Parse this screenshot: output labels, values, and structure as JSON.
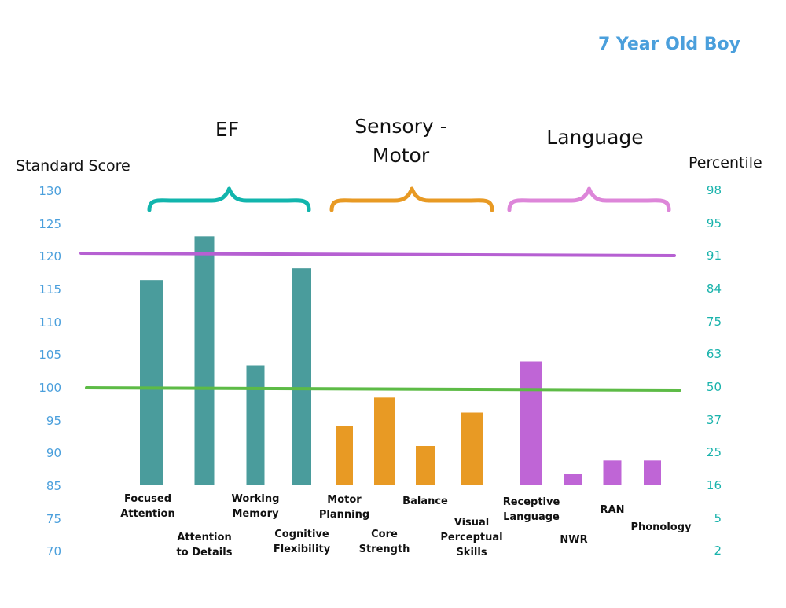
{
  "subtitle": "7 Year Old Boy",
  "chart_data": {
    "type": "bar",
    "left_axis": {
      "title": "Standard Score",
      "ticks": [
        "130",
        "125",
        "120",
        "115",
        "110",
        "105",
        "100",
        "95",
        "90",
        "85",
        "75",
        "70"
      ],
      "tick_color": "#4a9fdc"
    },
    "right_axis": {
      "title": "Percentile",
      "ticks": [
        "98",
        "95",
        "91",
        "84",
        "75",
        "63",
        "50",
        "37",
        "25",
        "16",
        "5",
        "2"
      ],
      "tick_color": "#1ab3ac"
    },
    "groups": [
      {
        "name": "EF",
        "color": "#4a9c9c",
        "bracket_color": "#12b5ad"
      },
      {
        "name": "Sensory -\nMotor",
        "color": "#e89a24",
        "bracket_color": "#e89a24"
      },
      {
        "name": "Language",
        "color": "#bf65d6",
        "bracket_color": "#dd86d9"
      }
    ],
    "categories": [
      "Focused\nAttention",
      "Attention\nto Details",
      "Working\nMemory",
      "Cognitive\nFlexibility",
      "Motor\nPlanning",
      "Core\nStrength",
      "Balance",
      "Visual\nPerceptual\nSkills",
      "Receptive\nLanguage",
      "NWR",
      "RAN",
      "Phonology"
    ],
    "bars": [
      {
        "category": "Focused\nAttention",
        "group": "EF",
        "value": 116.3
      },
      {
        "category": "Attention\nto Details",
        "group": "EF",
        "value": 123
      },
      {
        "category": "Working\nMemory",
        "group": "EF",
        "value": 103.3
      },
      {
        "category": "Cognitive\nFlexibility",
        "group": "EF",
        "value": 118.1
      },
      {
        "category": "Motor\nPlanning",
        "group": "Sensory -\nMotor",
        "value": 94.1
      },
      {
        "category": "Core\nStrength",
        "group": "Sensory -\nMotor",
        "value": 98.4
      },
      {
        "category": "Balance",
        "group": "Sensory -\nMotor",
        "value": 91
      },
      {
        "category": "Visual\nPerceptual\nSkills",
        "group": "Sensory -\nMotor",
        "value": 96.1
      },
      {
        "category": "Receptive\nLanguage",
        "group": "Language",
        "value": 103.9
      },
      {
        "category": "NWR",
        "group": "Language",
        "value": 86.7
      },
      {
        "category": "RAN",
        "group": "Language",
        "value": 88.8
      },
      {
        "category": "Phonology",
        "group": "Language",
        "value": 88.8
      }
    ],
    "reference_lines": [
      {
        "name": "upper-threshold",
        "value": 120.5,
        "color": "#b660d2"
      },
      {
        "name": "average",
        "value": 99.6,
        "color": "#5dbb46"
      }
    ]
  }
}
